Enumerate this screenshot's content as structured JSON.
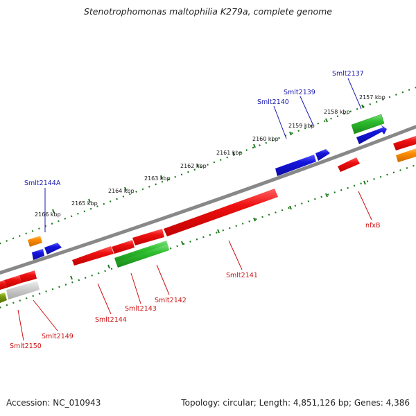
{
  "title": "Stenotrophomonas maltophilia K279a, complete genome",
  "footer": {
    "accession": "Accession: NC_010943",
    "summary": "Topology: circular; Length: 4,851,126 bp; Genes: 4,386"
  },
  "colors": {
    "backbone": "#888888",
    "tick": "#1d7a1d",
    "forward_label": "#1a1ab0",
    "reverse_label": "#cc1111",
    "red": "#ee1111",
    "green": "#2fbf2f",
    "blue": "#1515dd",
    "orange": "#ff8c00",
    "grey": "#c8c8c8",
    "olive": "#7a9a10"
  },
  "kbp_ticks": [
    "2157 kbp",
    "2158 kbp",
    "2159 kbp",
    "2160 kbp",
    "2161 kbp",
    "2162 kbp",
    "2163 kbp",
    "2164 kbp",
    "2165 kbp",
    "2166 kbp"
  ],
  "forward_labels": [
    "Smlt2137",
    "Smlt2139",
    "Smlt2140",
    "Smlt2144A"
  ],
  "reverse_labels": [
    "nfxB",
    "Smlt2141",
    "Smlt2142",
    "Smlt2143",
    "Smlt2144",
    "Smlt2149",
    "Smlt2150"
  ]
}
